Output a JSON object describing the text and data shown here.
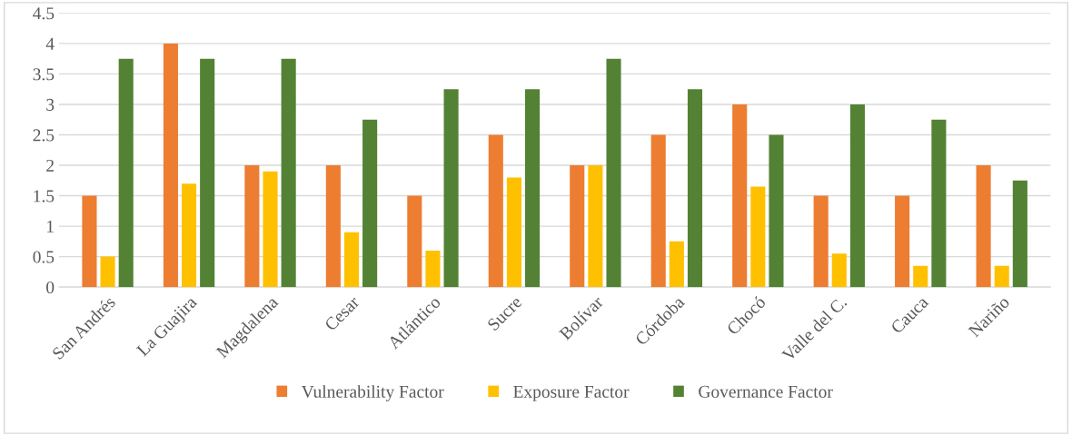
{
  "chart_data": {
    "type": "bar",
    "categories": [
      "San Andrés",
      "La Guajira",
      "Magdalena",
      "Cesar",
      "Atlántico",
      "Sucre",
      "Bolívar",
      "Córdoba",
      "Chocó",
      "Valle del C.",
      "Cauca",
      "Nariño"
    ],
    "series": [
      {
        "name": "Vulnerability Factor",
        "color": "#ed7d31",
        "values": [
          1.5,
          4,
          2,
          2,
          1.5,
          2.5,
          2,
          2.5,
          3,
          1.5,
          1.5,
          2
        ]
      },
      {
        "name": "Exposure Factor",
        "color": "#ffc000",
        "values": [
          0.5,
          1.7,
          1.9,
          0.9,
          0.6,
          1.8,
          2,
          0.75,
          1.65,
          0.55,
          0.35,
          0.35
        ]
      },
      {
        "name": "Governance Factor",
        "color": "#548235",
        "values": [
          3.75,
          3.75,
          3.75,
          2.75,
          3.25,
          3.25,
          3.75,
          3.25,
          2.5,
          3,
          2.75,
          1.75
        ]
      }
    ],
    "ylim": [
      0,
      4.5
    ],
    "yticks": [
      0,
      0.5,
      1,
      1.5,
      2,
      2.5,
      3,
      3.5,
      4,
      4.5
    ],
    "grid": "y",
    "legend": "bottom"
  }
}
